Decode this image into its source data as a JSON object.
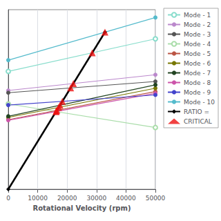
{
  "chart_data": {
    "type": "line",
    "xlabel": "Rotational Velocity (rpm)",
    "xlim": [
      0,
      50000
    ],
    "xticks": [
      0,
      10000,
      20000,
      30000,
      40000,
      50000
    ],
    "ylim": [
      0,
      1600
    ],
    "tick_labels": "x",
    "grid": true,
    "legend": "right",
    "series": [
      {
        "name": "Mode - 1",
        "color": "#88DDCC",
        "marker": "emptyCircle",
        "x": [
          0,
          50000
        ],
        "values": [
          1050,
          1340
        ]
      },
      {
        "name": "Mode - 2",
        "color": "#BB88CC",
        "marker": "circle",
        "x": [
          0,
          50000
        ],
        "values": [
          880,
          1020
        ]
      },
      {
        "name": "Mode - 3",
        "color": "#555555",
        "marker": "circle",
        "x": [
          0,
          50000
        ],
        "values": [
          860,
          960
        ]
      },
      {
        "name": "Mode - 4",
        "color": "#AADDAA",
        "marker": "emptyCircle",
        "x": [
          0,
          50000
        ],
        "values": [
          760,
          550
        ]
      },
      {
        "name": "Mode - 5",
        "color": "#BB5544",
        "marker": "circle",
        "x": [
          0,
          50000
        ],
        "values": [
          620,
          870
        ]
      },
      {
        "name": "Mode - 6",
        "color": "#777700",
        "marker": "circle",
        "x": [
          0,
          50000
        ],
        "values": [
          640,
          900
        ]
      },
      {
        "name": "Mode - 7",
        "color": "#224422",
        "marker": "circle",
        "x": [
          0,
          50000
        ],
        "values": [
          650,
          930
        ]
      },
      {
        "name": "Mode - 8",
        "color": "#CC55AA",
        "marker": "circle",
        "x": [
          0,
          50000
        ],
        "values": [
          615,
          855
        ]
      },
      {
        "name": "Mode - 9",
        "color": "#4444CC",
        "marker": "circle",
        "x": [
          0,
          50000
        ],
        "values": [
          750,
          840
        ]
      },
      {
        "name": "Mode - 10",
        "color": "#55BBCC",
        "marker": "circle",
        "x": [
          0,
          50000
        ],
        "values": [
          1150,
          1530
        ]
      },
      {
        "name": "RATIO =",
        "color": "#000000",
        "marker": "diamond",
        "x": [
          0,
          32863.85
        ],
        "values": [
          0,
          1400
        ]
      },
      {
        "name": "CRITICAL",
        "type": "scatter",
        "color": "#EE1111",
        "marker": "triangle",
        "x": [
          28532.61,
          22110.55,
          21182.27,
          16239.32,
          16489.36,
          17112.3,
          17567.57,
          16269.84,
          18382.35,
          32857.14
        ],
        "values": [
          1215.49,
          941.91,
          902.36,
          691.79,
          702.45,
          728.98,
          748.38,
          693.1,
          783.09,
          1399.71
        ]
      }
    ]
  }
}
